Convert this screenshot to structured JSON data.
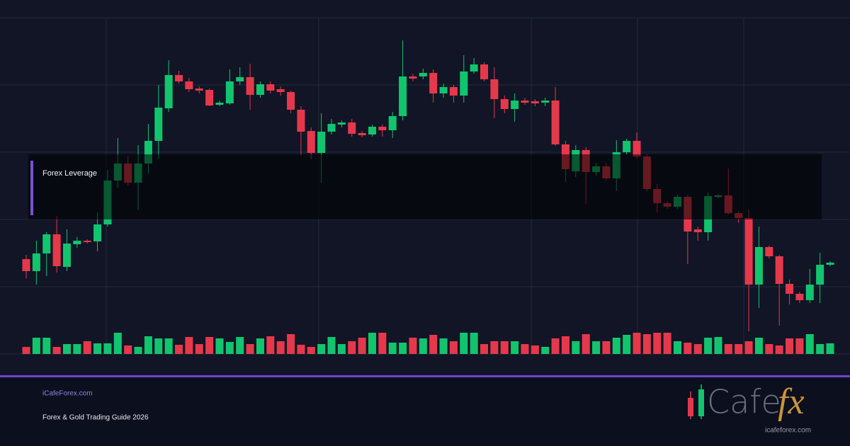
{
  "chart_data": {
    "type": "candlestick",
    "ylim": [
      0,
      475
    ],
    "grid": true,
    "up_color": "#13c46e",
    "down_color": "#e5394b",
    "annotation": "Forex Leverage",
    "open": [
      134,
      117,
      142,
      169,
      123,
      155,
      160,
      159,
      183,
      245,
      269,
      242,
      269,
      301,
      347,
      394,
      385,
      375,
      373,
      352,
      354,
      385,
      391,
      366,
      381,
      374,
      370,
      345,
      315,
      284,
      314,
      324,
      327,
      312,
      310,
      321,
      316,
      336,
      392,
      392,
      397,
      368,
      377,
      365,
      399,
      409,
      388,
      360,
      346,
      358,
      357,
      355,
      358,
      296,
      258,
      288,
      257,
      265,
      248,
      285,
      301,
      279,
      233,
      213,
      208,
      222,
      176,
      172,
      222,
      224,
      199,
      192,
      98,
      151,
      138,
      99,
      85,
      76,
      98,
      126
    ],
    "high": [
      140,
      160,
      172,
      195,
      176,
      165,
      162,
      200,
      260,
      305,
      280,
      295,
      325,
      380,
      415,
      400,
      390,
      378,
      375,
      358,
      402,
      405,
      410,
      385,
      385,
      378,
      372,
      350,
      320,
      340,
      332,
      330,
      332,
      315,
      324,
      324,
      342,
      443,
      396,
      403,
      402,
      382,
      380,
      422,
      418,
      412,
      405,
      365,
      368,
      362,
      360,
      362,
      377,
      301,
      295,
      292,
      270,
      270,
      302,
      304,
      313,
      282,
      240,
      216,
      225,
      225,
      180,
      228,
      226,
      262,
      202,
      204,
      180,
      153,
      140,
      105,
      88,
      120,
      143,
      131
    ],
    "low": [
      107,
      98,
      110,
      115,
      117,
      150,
      156,
      145,
      180,
      235,
      238,
      203,
      255,
      275,
      342,
      382,
      370,
      368,
      350,
      350,
      352,
      380,
      345,
      362,
      368,
      365,
      340,
      280,
      275,
      242,
      310,
      320,
      307,
      306,
      307,
      307,
      305,
      330,
      385,
      388,
      355,
      362,
      355,
      355,
      396,
      385,
      333,
      340,
      328,
      352,
      350,
      350,
      294,
      243,
      250,
      212,
      252,
      245,
      230,
      282,
      276,
      230,
      200,
      205,
      205,
      127,
      160,
      160,
      220,
      197,
      185,
      32,
      65,
      135,
      40,
      70,
      72,
      72,
      72,
      124
    ],
    "close": [
      117,
      142,
      169,
      124,
      156,
      160,
      158,
      183,
      245,
      269,
      242,
      269,
      301,
      348,
      394,
      385,
      374,
      372,
      351,
      355,
      385,
      391,
      366,
      381,
      372,
      370,
      345,
      314,
      284,
      314,
      325,
      327,
      311,
      309,
      321,
      316,
      336,
      392,
      389,
      397,
      368,
      377,
      365,
      399,
      409,
      388,
      360,
      346,
      358,
      355,
      354,
      358,
      296,
      261,
      288,
      257,
      265,
      248,
      285,
      301,
      279,
      233,
      213,
      208,
      222,
      173,
      172,
      223,
      224,
      199,
      192,
      98,
      151,
      138,
      99,
      85,
      76,
      98,
      126,
      129
    ],
    "volume": [
      10,
      23,
      23,
      10,
      14,
      14,
      18,
      15,
      15,
      30,
      12,
      10,
      25,
      22,
      22,
      13,
      24,
      14,
      24,
      22,
      17,
      24,
      14,
      22,
      25,
      18,
      28,
      13,
      10,
      14,
      24,
      14,
      18,
      23,
      30,
      30,
      16,
      16,
      23,
      22,
      27,
      22,
      18,
      30,
      30,
      14,
      18,
      18,
      18,
      14,
      12,
      10,
      22,
      25,
      18,
      28,
      18,
      18,
      23,
      27,
      30,
      28,
      30,
      30,
      18,
      16,
      14,
      23,
      24,
      14,
      14,
      18,
      23,
      14,
      12,
      22,
      22,
      28,
      14,
      15
    ]
  },
  "footer": {
    "site": "iCafeForex.com",
    "subtitle": "Forex & Gold Trading Guide 2026",
    "logo_text": "Cafe",
    "logo_fx": "fx",
    "logo_url": "icafeforex.com"
  }
}
